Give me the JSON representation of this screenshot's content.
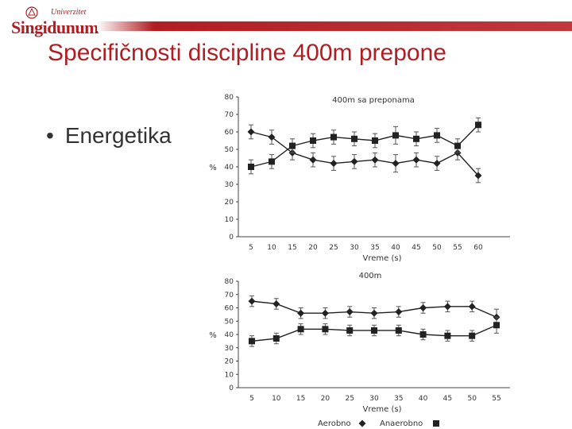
{
  "logo": {
    "top_text": "Univerzitet",
    "name": "Singidunum"
  },
  "title": "Specifičnosti discipline 400m prepone",
  "bullet": "Energetika",
  "chart_data": [
    {
      "type": "line",
      "title": "400m sa preponama",
      "xlabel": "Vreme (s)",
      "ylabel": "%",
      "ylim": [
        0,
        80
      ],
      "yticks": [
        0,
        10,
        20,
        30,
        40,
        50,
        60,
        70,
        80
      ],
      "x": [
        5,
        10,
        15,
        20,
        25,
        30,
        35,
        40,
        45,
        50,
        55,
        60
      ],
      "series": [
        {
          "name": "Aerobno",
          "marker": "diamond",
          "values": [
            60,
            57,
            48,
            44,
            42,
            43,
            44,
            42,
            44,
            42,
            48,
            35
          ],
          "err": [
            4,
            4,
            4,
            4,
            4,
            4,
            4,
            5,
            4,
            4,
            4,
            4
          ]
        },
        {
          "name": "Anaerobno",
          "marker": "square",
          "values": [
            40,
            43,
            52,
            55,
            57,
            56,
            55,
            58,
            56,
            58,
            52,
            64
          ],
          "err": [
            4,
            4,
            4,
            4,
            4,
            4,
            4,
            5,
            4,
            4,
            4,
            4
          ]
        }
      ]
    },
    {
      "type": "line",
      "title": "400m",
      "xlabel": "Vreme (s)",
      "ylabel": "%",
      "ylim": [
        0,
        80
      ],
      "yticks": [
        0,
        10,
        20,
        30,
        40,
        50,
        60,
        70,
        80
      ],
      "x": [
        5,
        10,
        15,
        20,
        25,
        30,
        35,
        40,
        45,
        50,
        55
      ],
      "series": [
        {
          "name": "Aerobno",
          "marker": "diamond",
          "values": [
            65,
            63,
            56,
            56,
            57,
            56,
            57,
            60,
            61,
            61,
            53
          ],
          "err": [
            4,
            4,
            4,
            4,
            4,
            4,
            4,
            4,
            4,
            4,
            6
          ]
        },
        {
          "name": "Anaerobno",
          "marker": "square",
          "values": [
            35,
            37,
            44,
            44,
            43,
            43,
            43,
            40,
            39,
            39,
            47
          ],
          "err": [
            4,
            4,
            4,
            4,
            4,
            4,
            4,
            4,
            4,
            4,
            6
          ]
        }
      ]
    }
  ],
  "legend": [
    {
      "label": "Aerobno",
      "marker": "diamond"
    },
    {
      "label": "Anaerobno",
      "marker": "square"
    }
  ]
}
